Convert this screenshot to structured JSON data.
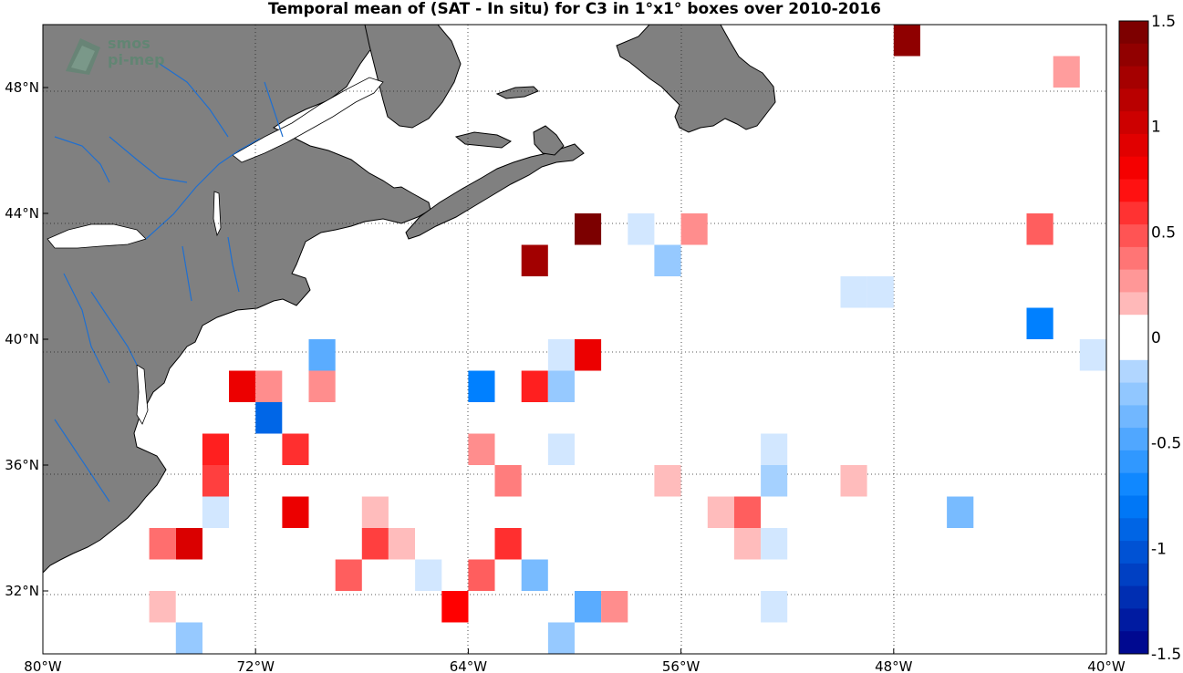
{
  "title": "Temporal mean of (SAT - In situ) for C3 in 1°x1° boxes over 2010-2016",
  "watermark": {
    "line1": "smos",
    "line2": "pi-mep"
  },
  "map": {
    "lon_range": [
      -80,
      -40
    ],
    "lat_range": [
      30,
      50
    ],
    "land_color": "#808080",
    "river_color": "#1f6fd0",
    "ocean_color": "#ffffff",
    "grid": "dotted",
    "lon_ticks": [
      {
        "value": -80,
        "label": "80°W"
      },
      {
        "value": -72,
        "label": "72°W"
      },
      {
        "value": -64,
        "label": "64°W"
      },
      {
        "value": -56,
        "label": "56°W"
      },
      {
        "value": -48,
        "label": "48°W"
      },
      {
        "value": -40,
        "label": "40°W"
      }
    ],
    "lat_ticks": [
      {
        "value": 48,
        "label": "48°N"
      },
      {
        "value": 44,
        "label": "44°N"
      },
      {
        "value": 40,
        "label": "40°N"
      },
      {
        "value": 36,
        "label": "36°N"
      },
      {
        "value": 32,
        "label": "32°N"
      }
    ]
  },
  "colorbar": {
    "range": [
      -1.5,
      1.5
    ],
    "ticks": [
      {
        "value": 1.5,
        "label": "1.5"
      },
      {
        "value": 1,
        "label": "1"
      },
      {
        "value": 0.5,
        "label": "0.5"
      },
      {
        "value": 0,
        "label": "0"
      },
      {
        "value": -0.5,
        "label": "-0.5"
      },
      {
        "value": -1,
        "label": "-1"
      },
      {
        "value": -1.5,
        "label": "-1.5"
      }
    ]
  },
  "chart_data": {
    "type": "heatmap",
    "cell_size_deg": 1,
    "value_range": [
      -1.5,
      1.5
    ],
    "cells": [
      {
        "lon": -47.5,
        "lat": 49.5,
        "value": 1.35
      },
      {
        "lon": -41.5,
        "lat": 48.5,
        "value": 0.25
      },
      {
        "lon": -59.5,
        "lat": 43.5,
        "value": 1.45
      },
      {
        "lon": -57.5,
        "lat": 43.5,
        "value": -0.05
      },
      {
        "lon": -55.5,
        "lat": 43.5,
        "value": 0.3
      },
      {
        "lon": -42.5,
        "lat": 43.5,
        "value": 0.45
      },
      {
        "lon": -61.5,
        "lat": 42.5,
        "value": 1.25
      },
      {
        "lon": -56.5,
        "lat": 42.5,
        "value": -0.25
      },
      {
        "lon": -49.5,
        "lat": 41.5,
        "value": -0.05
      },
      {
        "lon": -48.5,
        "lat": 41.5,
        "value": -0.05
      },
      {
        "lon": -42.5,
        "lat": 40.5,
        "value": -0.75
      },
      {
        "lon": -69.5,
        "lat": 39.5,
        "value": -0.45
      },
      {
        "lon": -60.5,
        "lat": 39.5,
        "value": -0.05
      },
      {
        "lon": -59.5,
        "lat": 39.5,
        "value": 0.85
      },
      {
        "lon": -40.5,
        "lat": 39.5,
        "value": -0.05
      },
      {
        "lon": -72.5,
        "lat": 38.5,
        "value": 0.85
      },
      {
        "lon": -71.5,
        "lat": 38.5,
        "value": 0.3
      },
      {
        "lon": -69.5,
        "lat": 38.5,
        "value": 0.3
      },
      {
        "lon": -63.5,
        "lat": 38.5,
        "value": -0.75
      },
      {
        "lon": -61.5,
        "lat": 38.5,
        "value": 0.65
      },
      {
        "lon": -60.5,
        "lat": 38.5,
        "value": -0.25
      },
      {
        "lon": -71.5,
        "lat": 37.5,
        "value": -0.9
      },
      {
        "lon": -73.5,
        "lat": 36.5,
        "value": 0.65
      },
      {
        "lon": -70.5,
        "lat": 36.5,
        "value": 0.6
      },
      {
        "lon": -63.5,
        "lat": 36.5,
        "value": 0.3
      },
      {
        "lon": -60.5,
        "lat": 36.5,
        "value": -0.05
      },
      {
        "lon": -52.5,
        "lat": 36.5,
        "value": -0.05
      },
      {
        "lon": -73.5,
        "lat": 35.5,
        "value": 0.55
      },
      {
        "lon": -62.5,
        "lat": 35.5,
        "value": 0.35
      },
      {
        "lon": -56.5,
        "lat": 35.5,
        "value": 0.15
      },
      {
        "lon": -52.5,
        "lat": 35.5,
        "value": -0.2
      },
      {
        "lon": -49.5,
        "lat": 35.5,
        "value": 0.15
      },
      {
        "lon": -73.5,
        "lat": 34.5,
        "value": -0.05
      },
      {
        "lon": -70.5,
        "lat": 34.5,
        "value": 0.85
      },
      {
        "lon": -67.5,
        "lat": 34.5,
        "value": 0.15
      },
      {
        "lon": -54.5,
        "lat": 34.5,
        "value": 0.15
      },
      {
        "lon": -53.5,
        "lat": 34.5,
        "value": 0.45
      },
      {
        "lon": -45.5,
        "lat": 34.5,
        "value": -0.35
      },
      {
        "lon": -75.5,
        "lat": 33.5,
        "value": 0.4
      },
      {
        "lon": -74.5,
        "lat": 33.5,
        "value": 0.95
      },
      {
        "lon": -67.5,
        "lat": 33.5,
        "value": 0.55
      },
      {
        "lon": -66.5,
        "lat": 33.5,
        "value": 0.15
      },
      {
        "lon": -62.5,
        "lat": 33.5,
        "value": 0.6
      },
      {
        "lon": -53.5,
        "lat": 33.5,
        "value": 0.15
      },
      {
        "lon": -52.5,
        "lat": 33.5,
        "value": -0.05
      },
      {
        "lon": -68.5,
        "lat": 32.5,
        "value": 0.45
      },
      {
        "lon": -65.5,
        "lat": 32.5,
        "value": -0.05
      },
      {
        "lon": -63.5,
        "lat": 32.5,
        "value": 0.45
      },
      {
        "lon": -61.5,
        "lat": 32.5,
        "value": -0.35
      },
      {
        "lon": -75.5,
        "lat": 31.5,
        "value": 0.15
      },
      {
        "lon": -64.5,
        "lat": 31.5,
        "value": 0.75
      },
      {
        "lon": -59.5,
        "lat": 31.5,
        "value": -0.45
      },
      {
        "lon": -58.5,
        "lat": 31.5,
        "value": 0.3
      },
      {
        "lon": -52.5,
        "lat": 31.5,
        "value": -0.05
      },
      {
        "lon": -74.5,
        "lat": 30.5,
        "value": -0.25
      },
      {
        "lon": -60.5,
        "lat": 30.5,
        "value": -0.25
      }
    ]
  }
}
